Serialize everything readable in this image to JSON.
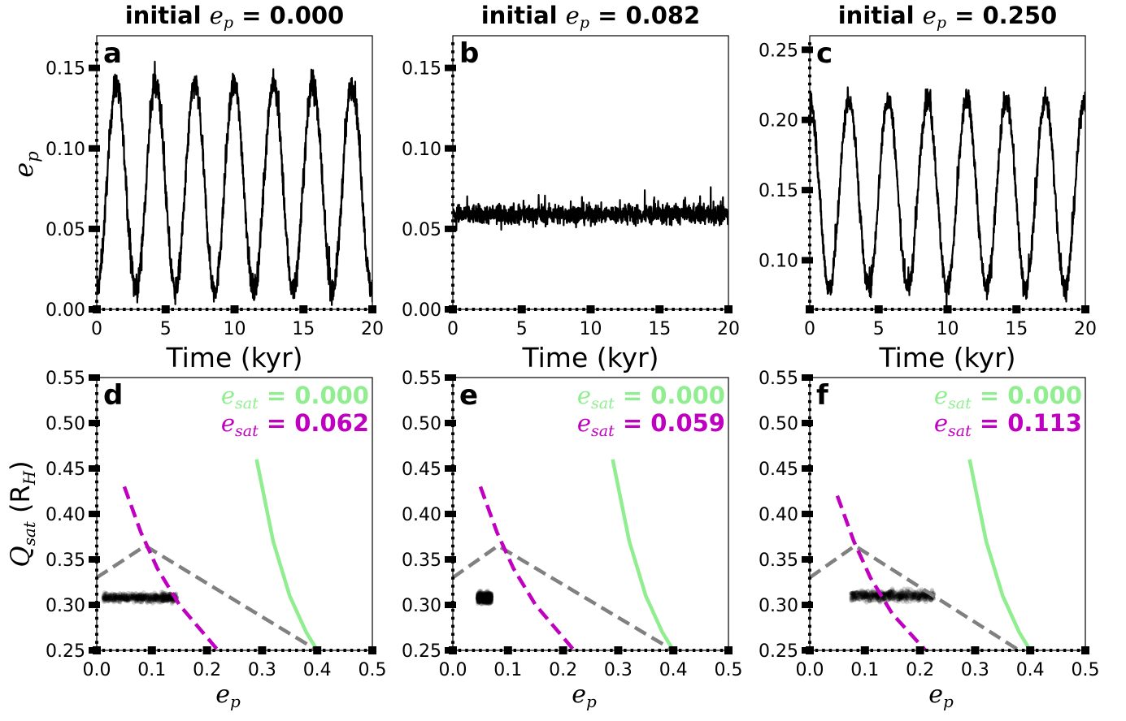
{
  "chart_data": [
    {
      "panel_label": "a",
      "type": "line",
      "title_prefix": "initial",
      "title_var": "e",
      "title_sub": "p",
      "title_value": "= 0.000",
      "xlabel": "Time (kyr)",
      "ylabel_var": "e",
      "ylabel_sub": "p",
      "xlim": [
        0,
        20
      ],
      "ylim": [
        0,
        0.17
      ],
      "xticks": [
        0,
        5,
        10,
        15,
        20
      ],
      "yticks": [
        0.0,
        0.05,
        0.1,
        0.15
      ],
      "xtick_labels": [
        "0",
        "5",
        "10",
        "15",
        "20"
      ],
      "ytick_labels": [
        "0.00",
        "0.05",
        "0.10",
        "0.15"
      ],
      "series": [
        {
          "period_kyr": 2.85,
          "min": 0.012,
          "max": 0.14,
          "noise": 0.008,
          "start_phase": "min"
        }
      ]
    },
    {
      "panel_label": "b",
      "type": "line",
      "title_prefix": "initial",
      "title_var": "e",
      "title_sub": "p",
      "title_value": "= 0.082",
      "xlabel": "Time (kyr)",
      "xlim": [
        0,
        20
      ],
      "ylim": [
        0,
        0.17
      ],
      "xticks": [
        0,
        5,
        10,
        15,
        20
      ],
      "yticks": [
        0.0,
        0.05,
        0.1,
        0.15
      ],
      "xtick_labels": [
        "0",
        "5",
        "10",
        "15",
        "20"
      ],
      "ytick_labels": [
        "0.00",
        "0.05",
        "0.10",
        "0.15"
      ],
      "series": [
        {
          "mean": 0.059,
          "noise": 0.006
        }
      ]
    },
    {
      "panel_label": "c",
      "type": "line",
      "title_prefix": "initial",
      "title_var": "e",
      "title_sub": "p",
      "title_value": "= 0.250",
      "xlabel": "Time (kyr)",
      "xlim": [
        0,
        20
      ],
      "ylim": [
        0.065,
        0.26
      ],
      "xticks": [
        0,
        5,
        10,
        15,
        20
      ],
      "yticks": [
        0.1,
        0.15,
        0.2,
        0.25
      ],
      "xtick_labels": [
        "0",
        "5",
        "10",
        "15",
        "20"
      ],
      "ytick_labels": [
        "0.10",
        "0.15",
        "0.20",
        "0.25"
      ],
      "series": [
        {
          "period_kyr": 2.85,
          "min": 0.08,
          "max": 0.215,
          "noise": 0.008,
          "start_phase": "max"
        }
      ]
    },
    {
      "panel_label": "d",
      "type": "scatter",
      "xlabel_var": "e",
      "xlabel_sub": "p",
      "ylabel_var": "Q",
      "ylabel_sub": "sat",
      "ylabel_unit": "(R",
      "ylabel_unit_sub": "H",
      "ylabel_close": ")",
      "xlim": [
        0,
        0.5
      ],
      "ylim": [
        0.25,
        0.55
      ],
      "xticks": [
        0.0,
        0.1,
        0.2,
        0.3,
        0.4,
        0.5
      ],
      "yticks": [
        0.25,
        0.3,
        0.35,
        0.4,
        0.45,
        0.5,
        0.55
      ],
      "xtick_labels": [
        "0.0",
        "0.1",
        "0.2",
        "0.3",
        "0.4",
        "0.5"
      ],
      "ytick_labels": [
        "0.25",
        "0.30",
        "0.35",
        "0.40",
        "0.45",
        "0.50",
        "0.55"
      ],
      "legend": [
        {
          "var": "e",
          "sub": "sat",
          "value": "= 0.000",
          "color": "#90ee90"
        },
        {
          "var": "e",
          "sub": "sat",
          "value": "= 0.062",
          "color": "#c000c0"
        }
      ],
      "cloud": {
        "x_range": [
          0.012,
          0.145
        ],
        "y_center": 0.308,
        "y_spread": 0.008
      },
      "curves": {
        "green": [
          [
            0.29,
            0.46
          ],
          [
            0.32,
            0.37
          ],
          [
            0.35,
            0.31
          ],
          [
            0.38,
            0.27
          ],
          [
            0.4,
            0.25
          ]
        ],
        "magenta": [
          [
            0.05,
            0.43
          ],
          [
            0.08,
            0.38
          ],
          [
            0.11,
            0.34
          ],
          [
            0.15,
            0.3
          ],
          [
            0.22,
            0.25
          ]
        ],
        "gray": [
          [
            0.0,
            0.33
          ],
          [
            0.088,
            0.365
          ],
          [
            0.4,
            0.25
          ]
        ]
      }
    },
    {
      "panel_label": "e",
      "type": "scatter",
      "xlabel_var": "e",
      "xlabel_sub": "p",
      "xlim": [
        0,
        0.5
      ],
      "ylim": [
        0.25,
        0.55
      ],
      "xticks": [
        0.0,
        0.1,
        0.2,
        0.3,
        0.4,
        0.5
      ],
      "yticks": [
        0.25,
        0.3,
        0.35,
        0.4,
        0.45,
        0.5,
        0.55
      ],
      "xtick_labels": [
        "0.0",
        "0.1",
        "0.2",
        "0.3",
        "0.4",
        "0.5"
      ],
      "ytick_labels": [
        "0.25",
        "0.30",
        "0.35",
        "0.40",
        "0.45",
        "0.50",
        "0.55"
      ],
      "legend": [
        {
          "var": "e",
          "sub": "sat",
          "value": "= 0.000",
          "color": "#90ee90"
        },
        {
          "var": "e",
          "sub": "sat",
          "value": "= 0.059",
          "color": "#c000c0"
        }
      ],
      "cloud": {
        "x_range": [
          0.045,
          0.07
        ],
        "y_center": 0.308,
        "y_spread": 0.01
      },
      "curves": {
        "green": [
          [
            0.29,
            0.46
          ],
          [
            0.32,
            0.37
          ],
          [
            0.35,
            0.31
          ],
          [
            0.38,
            0.27
          ],
          [
            0.4,
            0.25
          ]
        ],
        "magenta": [
          [
            0.05,
            0.43
          ],
          [
            0.08,
            0.38
          ],
          [
            0.11,
            0.34
          ],
          [
            0.15,
            0.3
          ],
          [
            0.22,
            0.25
          ]
        ],
        "gray": [
          [
            0.0,
            0.33
          ],
          [
            0.082,
            0.365
          ],
          [
            0.4,
            0.25
          ]
        ]
      }
    },
    {
      "panel_label": "f",
      "type": "scatter",
      "xlabel_var": "e",
      "xlabel_sub": "p",
      "xlim": [
        0,
        0.5
      ],
      "ylim": [
        0.25,
        0.55
      ],
      "xticks": [
        0.0,
        0.1,
        0.2,
        0.3,
        0.4,
        0.5
      ],
      "yticks": [
        0.25,
        0.3,
        0.35,
        0.4,
        0.45,
        0.5,
        0.55
      ],
      "xtick_labels": [
        "0.0",
        "0.1",
        "0.2",
        "0.3",
        "0.4",
        "0.5"
      ],
      "ytick_labels": [
        "0.25",
        "0.30",
        "0.35",
        "0.40",
        "0.45",
        "0.50",
        "0.55"
      ],
      "legend": [
        {
          "var": "e",
          "sub": "sat",
          "value": "= 0.000",
          "color": "#90ee90"
        },
        {
          "var": "e",
          "sub": "sat",
          "value": "= 0.113",
          "color": "#c000c0"
        }
      ],
      "cloud": {
        "x_range": [
          0.075,
          0.225
        ],
        "y_center": 0.31,
        "y_spread": 0.01
      },
      "curves": {
        "green": [
          [
            0.29,
            0.46
          ],
          [
            0.32,
            0.37
          ],
          [
            0.35,
            0.31
          ],
          [
            0.38,
            0.27
          ],
          [
            0.4,
            0.25
          ]
        ],
        "magenta": [
          [
            0.05,
            0.42
          ],
          [
            0.08,
            0.37
          ],
          [
            0.11,
            0.33
          ],
          [
            0.15,
            0.29
          ],
          [
            0.21,
            0.25
          ]
        ],
        "gray": [
          [
            0.0,
            0.33
          ],
          [
            0.082,
            0.365
          ],
          [
            0.38,
            0.25
          ]
        ]
      }
    }
  ]
}
